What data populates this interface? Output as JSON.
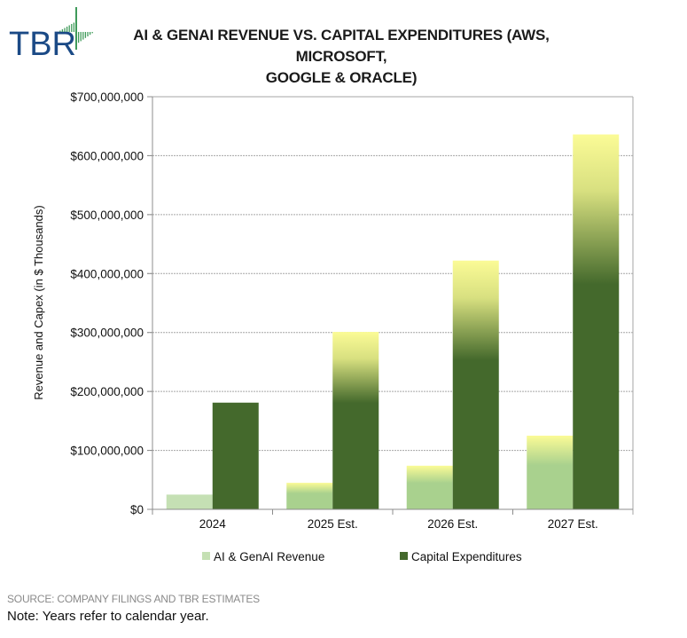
{
  "logo": {
    "text": "TBR",
    "color": "#1b4a86",
    "accent": "#3f9a5a"
  },
  "title_lines": [
    "AI & GENAI REVENUE VS. CAPITAL EXPENDITURES (AWS, MICROSOFT,",
    "GOOGLE & ORACLE)"
  ],
  "chart_data": {
    "type": "bar",
    "title": "AI & GENAI REVENUE VS. CAPITAL EXPENDITURES (AWS, MICROSOFT, GOOGLE & ORACLE)",
    "xlabel": "",
    "ylabel": "Revenue and Capex (in $ Thousands)",
    "ylim": [
      0,
      700000000
    ],
    "yticks": [
      0,
      100000000,
      200000000,
      300000000,
      400000000,
      500000000,
      600000000,
      700000000
    ],
    "ytick_labels": [
      "$0",
      "$100,000,000",
      "$200,000,000",
      "$300,000,000",
      "$400,000,000",
      "$500,000,000",
      "$600,000,000",
      "$700,000,000"
    ],
    "categories": [
      "2024",
      "2025 Est.",
      "2026 Est.",
      "2027 Est."
    ],
    "series": [
      {
        "name": "AI & GenAI Revenue",
        "values": [
          25000000,
          45000000,
          74000000,
          125000000
        ],
        "color": "#a9d18e",
        "color_2024": "#c5e0b4",
        "gradient_top": "#fbfb96"
      },
      {
        "name": "Capital Expenditures",
        "values": [
          181000000,
          301000000,
          422000000,
          636000000
        ],
        "color": "#44692c",
        "gradient_top": "#fbfb96"
      }
    ],
    "grid": true,
    "legend_position": "bottom"
  },
  "footer": {
    "source": "SOURCE:  COMPANY FILINGS AND TBR ESTIMATES",
    "note": "Note: Years refer to calendar year."
  }
}
